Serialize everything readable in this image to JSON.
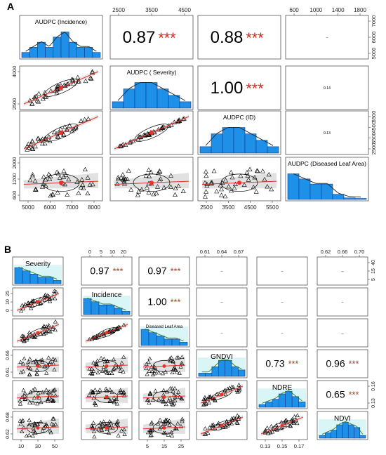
{
  "chart_data": [
    {
      "type": "scatter",
      "panel_label": "A",
      "variables": [
        "AUDPC (Incidence)",
        "AUDPC ( Severity)",
        "AUDPC (ID)",
        "AUDPC (Diseased Leaf Area)"
      ],
      "correlations": [
        {
          "row": 0,
          "col": 1,
          "text": "0.87",
          "stars": "***"
        },
        {
          "row": 0,
          "col": 2,
          "text": "0.88",
          "stars": "***"
        },
        {
          "row": 0,
          "col": 3,
          "text": "--",
          "stars": ""
        },
        {
          "row": 1,
          "col": 2,
          "text": "1.00",
          "stars": "***"
        },
        {
          "row": 1,
          "col": 3,
          "text": "0.14",
          "stars": ""
        },
        {
          "row": 2,
          "col": 3,
          "text": "0.13",
          "stars": ""
        }
      ],
      "ticks_top": [
        {
          "col": 1,
          "labels": [
            "2500",
            "3500",
            "4500"
          ]
        },
        {
          "col": 3,
          "labels": [
            "600",
            "1000",
            "1400",
            "1800"
          ]
        }
      ],
      "ticks_bottom": [
        {
          "col": 0,
          "labels": [
            "5000",
            "6000",
            "7000",
            "8000"
          ]
        },
        {
          "col": 2,
          "labels": [
            "2500",
            "3500",
            "4500",
            "5500"
          ]
        }
      ],
      "ticks_left": [
        {
          "row": 1,
          "labels": [
            "2500",
            "4000"
          ]
        },
        {
          "row": 3,
          "labels": [
            "600",
            "1200",
            "2000"
          ]
        }
      ],
      "ticks_right": [
        {
          "row": 0,
          "labels": [
            "5000",
            "6000",
            "7000"
          ]
        },
        {
          "row": 2,
          "labels": [
            "2500",
            "3500",
            "4500",
            "5500"
          ]
        }
      ],
      "histograms": [
        [
          1,
          2,
          3,
          2,
          4,
          5,
          3,
          2,
          2,
          1
        ],
        [
          1,
          3,
          4,
          4,
          3,
          2,
          1
        ],
        [
          1,
          3,
          4,
          4,
          3,
          2,
          1
        ],
        [
          5,
          4,
          3,
          3,
          1,
          0.3,
          0.2
        ]
      ]
    },
    {
      "type": "scatter",
      "panel_label": "B",
      "variables": [
        "Severity",
        "Incidence",
        "Diseased Leaf Area",
        "GNDVI",
        "NDRE",
        "NDVI"
      ],
      "correlations": [
        {
          "row": 0,
          "col": 1,
          "text": "0.97",
          "stars": "***"
        },
        {
          "row": 0,
          "col": 2,
          "text": "0.97",
          "stars": "***"
        },
        {
          "row": 0,
          "col": 3,
          "text": "--",
          "stars": ""
        },
        {
          "row": 0,
          "col": 4,
          "text": "--",
          "stars": ""
        },
        {
          "row": 0,
          "col": 5,
          "text": "--",
          "stars": ""
        },
        {
          "row": 1,
          "col": 2,
          "text": "1.00",
          "stars": "***"
        },
        {
          "row": 1,
          "col": 3,
          "text": "--",
          "stars": ""
        },
        {
          "row": 1,
          "col": 4,
          "text": "--",
          "stars": ""
        },
        {
          "row": 1,
          "col": 5,
          "text": "--",
          "stars": ""
        },
        {
          "row": 2,
          "col": 3,
          "text": "--",
          "stars": ""
        },
        {
          "row": 2,
          "col": 4,
          "text": "--",
          "stars": ""
        },
        {
          "row": 2,
          "col": 5,
          "text": "--",
          "stars": ""
        },
        {
          "row": 3,
          "col": 4,
          "text": "0.73",
          "stars": "***"
        },
        {
          "row": 3,
          "col": 5,
          "text": "0.96",
          "stars": "***"
        },
        {
          "row": 4,
          "col": 5,
          "text": "0.65",
          "stars": "***"
        }
      ],
      "ticks_top": [
        {
          "col": 1,
          "labels": [
            "0",
            "5",
            "10",
            "20"
          ]
        },
        {
          "col": 3,
          "labels": [
            "0.61",
            "0.64",
            "0.67"
          ]
        },
        {
          "col": 5,
          "labels": [
            "0.62",
            "0.66",
            "0.70"
          ]
        }
      ],
      "ticks_bottom": [
        {
          "col": 0,
          "labels": [
            "10",
            "30",
            "50"
          ]
        },
        {
          "col": 2,
          "labels": [
            "5",
            "15",
            "25"
          ]
        },
        {
          "col": 4,
          "labels": [
            "0.13",
            "0.15",
            "0.17"
          ]
        }
      ],
      "ticks_left": [
        {
          "row": 1,
          "labels": [
            "0",
            "10",
            "25"
          ]
        },
        {
          "row": 3,
          "labels": [
            "0.61",
            "0.66"
          ]
        },
        {
          "row": 5,
          "labels": [
            "0.62",
            "0.68"
          ]
        }
      ],
      "ticks_right": [
        {
          "row": 0,
          "labels": [
            "5",
            "15",
            "40"
          ]
        },
        {
          "row": 4,
          "labels": [
            "0.13",
            "0.16"
          ]
        }
      ],
      "histograms": [
        [
          5,
          4,
          3,
          2,
          2,
          1
        ],
        [
          5,
          4,
          3,
          3,
          2,
          1
        ],
        [
          5,
          4,
          3,
          2,
          2,
          1
        ],
        [
          1,
          1,
          3,
          5,
          5,
          3,
          2
        ],
        [
          1,
          2,
          3,
          5,
          6,
          4,
          2
        ],
        [
          1,
          2,
          3,
          5,
          6,
          5,
          4,
          1
        ]
      ]
    }
  ]
}
